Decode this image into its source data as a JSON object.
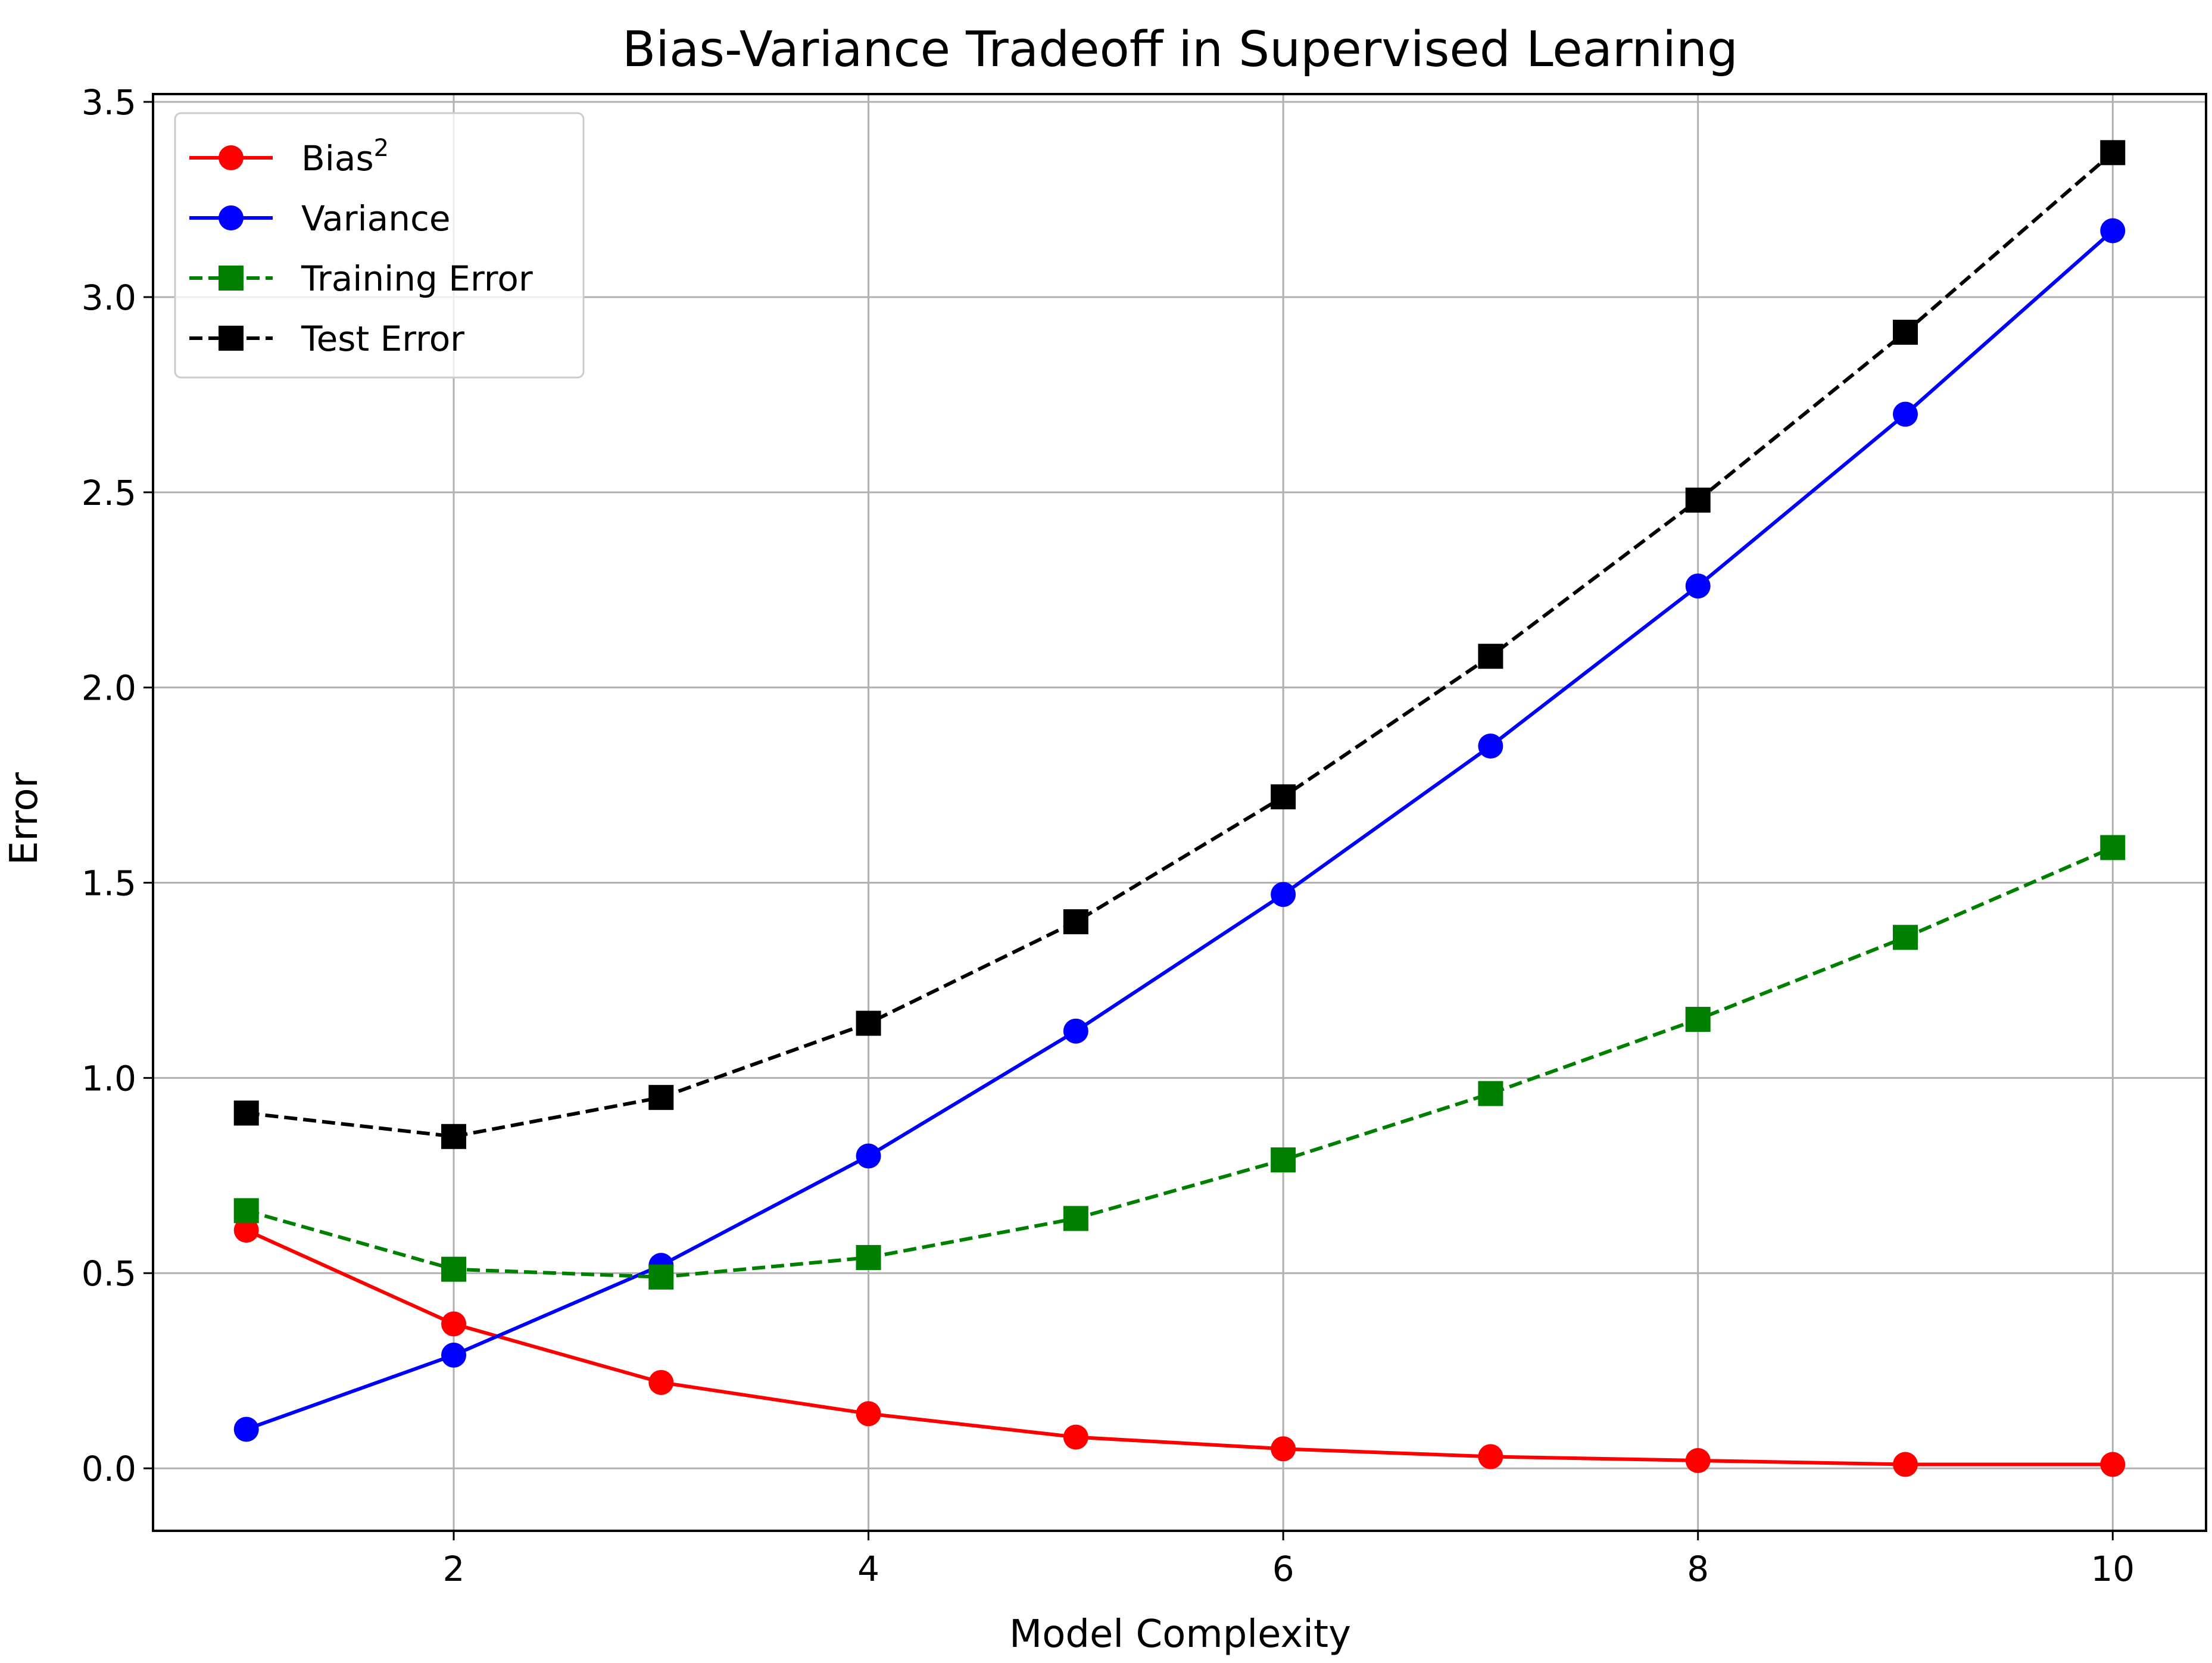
{
  "chart_data": {
    "type": "line",
    "title": "Bias-Variance Tradeoff in Supervised Learning",
    "xlabel": "Model Complexity",
    "ylabel": "Error",
    "xlim": [
      0.55,
      10.45
    ],
    "ylim": [
      -0.16,
      3.52
    ],
    "xticks": [
      2,
      4,
      6,
      8,
      10
    ],
    "xtick_labels": [
      "2",
      "4",
      "6",
      "8",
      "10"
    ],
    "yticks": [
      0.0,
      0.5,
      1.0,
      1.5,
      2.0,
      2.5,
      3.0,
      3.5
    ],
    "ytick_labels": [
      "0.0",
      "0.5",
      "1.0",
      "1.5",
      "2.0",
      "2.5",
      "3.0",
      "3.5"
    ],
    "grid": true,
    "legend_position": "upper-left",
    "x": [
      1,
      2,
      3,
      4,
      5,
      6,
      7,
      8,
      9,
      10
    ],
    "series": [
      {
        "name": "Bias",
        "name_superscript": "2",
        "color": "#ff0000",
        "linestyle": "solid",
        "marker": "circle",
        "values": [
          0.61,
          0.37,
          0.22,
          0.14,
          0.08,
          0.05,
          0.03,
          0.02,
          0.01,
          0.01
        ]
      },
      {
        "name": "Variance",
        "color": "#0000ff",
        "linestyle": "solid",
        "marker": "circle",
        "values": [
          0.1,
          0.29,
          0.52,
          0.8,
          1.12,
          1.47,
          1.85,
          2.26,
          2.7,
          3.17
        ]
      },
      {
        "name": "Training Error",
        "color": "#008000",
        "linestyle": "dashed",
        "marker": "square",
        "values": [
          0.66,
          0.51,
          0.49,
          0.54,
          0.64,
          0.79,
          0.96,
          1.15,
          1.36,
          1.59
        ]
      },
      {
        "name": "Test Error",
        "color": "#000000",
        "linestyle": "dashed",
        "marker": "square",
        "values": [
          0.91,
          0.85,
          0.95,
          1.14,
          1.4,
          1.72,
          2.08,
          2.48,
          2.91,
          3.37
        ]
      }
    ]
  }
}
